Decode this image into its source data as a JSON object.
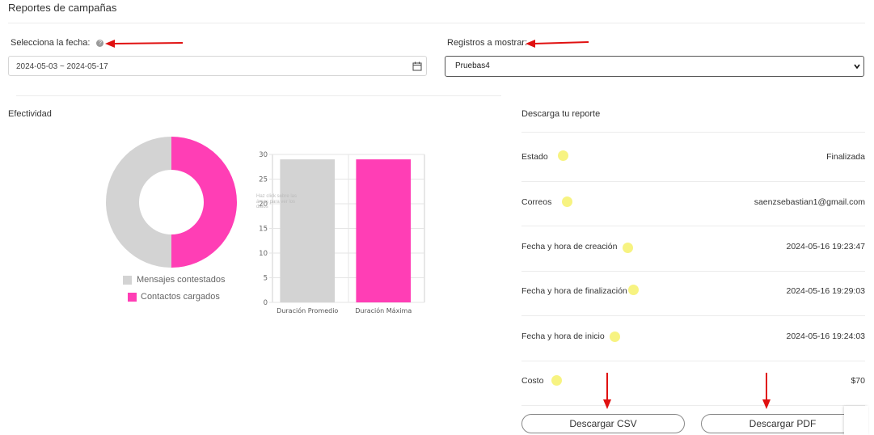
{
  "header": {
    "title": "Reportes de campañas"
  },
  "filters": {
    "date_label": "Selecciona la fecha:",
    "date_value": "2024-05-03 ~ 2024-05-17",
    "records_label": "Registros a mostrar:",
    "records_value": "Pruebas4"
  },
  "effectiveness": {
    "title": "Efectividad",
    "legend": [
      "Mensajes contestados",
      "Contactos cargados"
    ],
    "colors": {
      "grey": "#d3d3d3",
      "pink": "#ff3eb5"
    }
  },
  "bar_hint": "Haz click sobre las áreas para ver los datos",
  "chart_data": [
    {
      "type": "pie",
      "donut": true,
      "labels": [
        "Mensajes contestados",
        "Contactos cargados"
      ],
      "values": [
        50,
        50
      ],
      "colors": [
        "#d3d3d3",
        "#ff3eb5"
      ],
      "legend_position": "bottom"
    },
    {
      "type": "bar",
      "categories": [
        "Duración Promedio",
        "Duración Máxima"
      ],
      "values": [
        29,
        29
      ],
      "colors": [
        "#d3d3d3",
        "#ff3eb5"
      ],
      "ylim": [
        0,
        30
      ],
      "yticks": [
        0,
        5,
        10,
        15,
        20,
        25,
        30
      ],
      "grid": true
    }
  ],
  "report": {
    "title": "Descarga tu reporte",
    "rows": [
      {
        "label": "Estado",
        "value": "Finalizada"
      },
      {
        "label": "Correos",
        "value": "saenzsebastian1@gmail.com"
      },
      {
        "label": "Fecha y hora de creación",
        "value": "2024-05-16 19:23:47"
      },
      {
        "label": "Fecha y hora de finalización",
        "value": "2024-05-16 19:29:03"
      },
      {
        "label": "Fecha y hora de inicio",
        "value": "2024-05-16 19:24:03"
      },
      {
        "label": "Costo",
        "value": "$70"
      }
    ],
    "csv_button": "Descargar CSV",
    "pdf_button": "Descargar PDF"
  }
}
